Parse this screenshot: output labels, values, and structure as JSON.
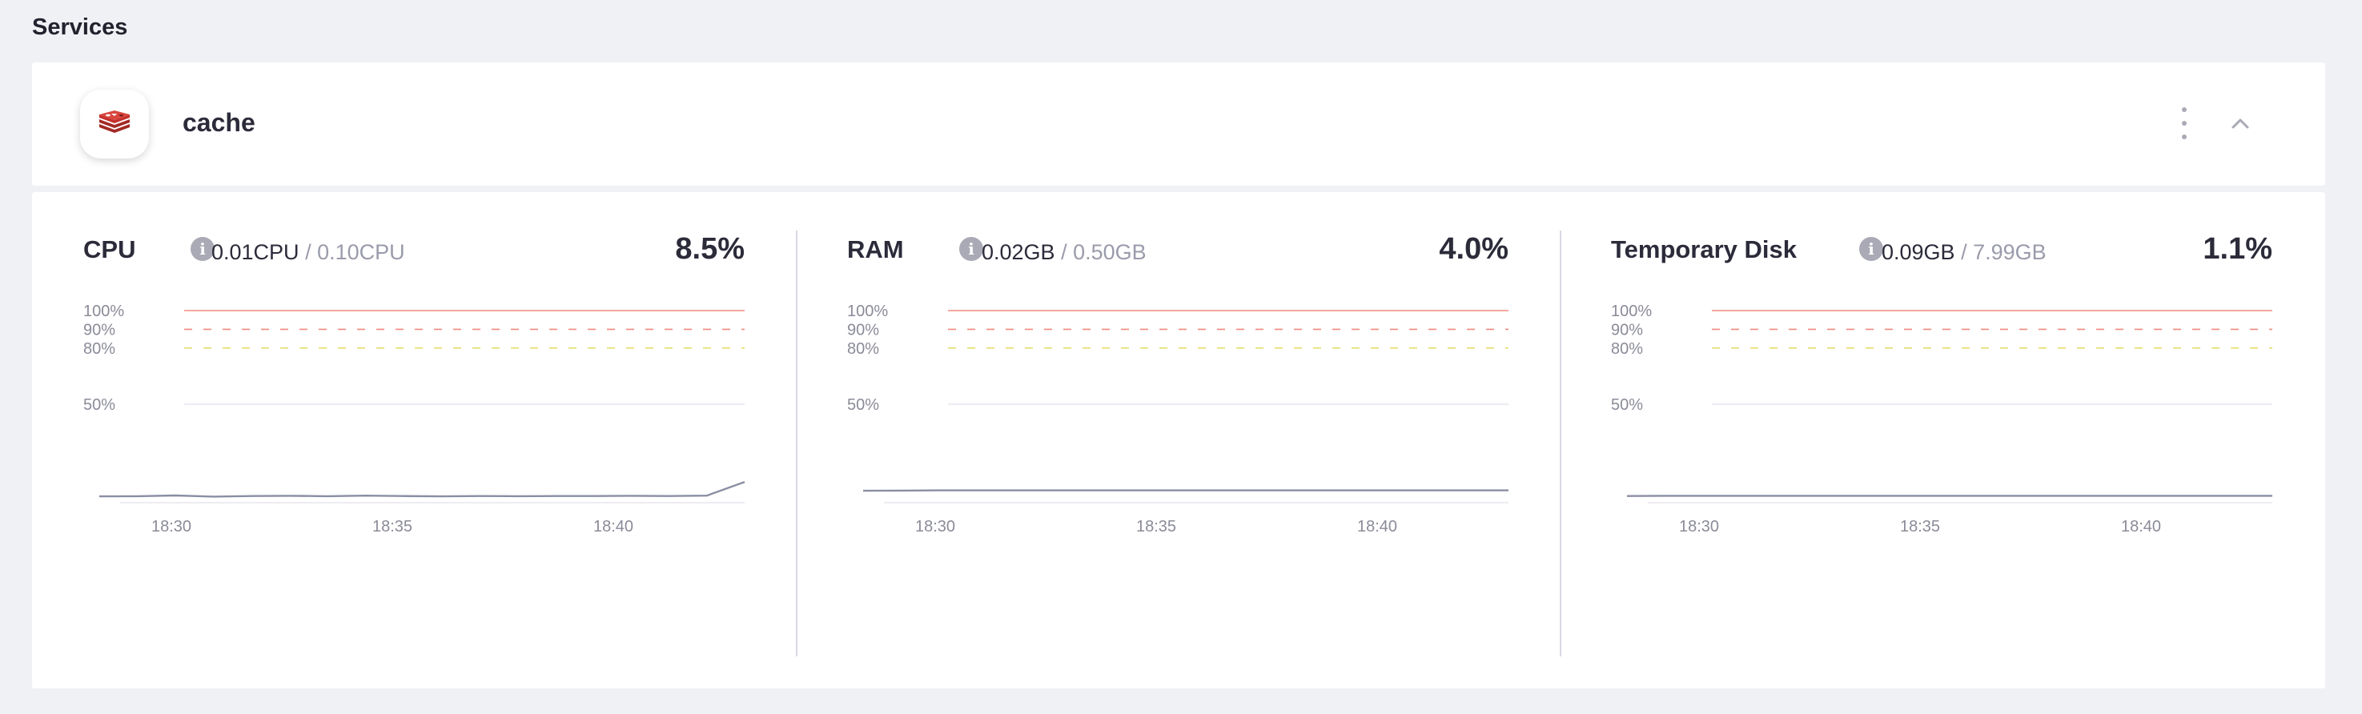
{
  "page": {
    "title": "Services"
  },
  "service": {
    "name": "cache",
    "icon": "redis-icon",
    "icon_color": "#c6302b"
  },
  "colors": {
    "limit_line": "#f08a80",
    "danger_line": "#f08a80",
    "warning_line": "#e6de6a",
    "grid_line": "#e6e6ee",
    "series_line": "#8a8ea3"
  },
  "panels": [
    {
      "title": "CPU",
      "used": "0.01CPU",
      "limit": "/ 0.10CPU",
      "percent": "8.5%",
      "chart_data": {
        "type": "line",
        "ylabels": [
          "100%",
          "90%",
          "80%",
          "50%"
        ],
        "x_ticks": [
          "18:30",
          "18:35",
          "18:40"
        ],
        "series": [
          {
            "values": [
              0.8,
              0.9,
              1.3,
              0.7,
              1.0,
              1.1,
              0.9,
              1.2,
              1.0,
              0.8,
              1.0,
              0.9,
              1.0,
              1.0,
              1.1,
              1.0,
              1.2,
              8.5
            ]
          }
        ]
      }
    },
    {
      "title": "RAM",
      "used": "0.02GB",
      "limit": "/ 0.50GB",
      "percent": "4.0%",
      "chart_data": {
        "type": "line",
        "ylabels": [
          "100%",
          "90%",
          "80%",
          "50%"
        ],
        "x_ticks": [
          "18:30",
          "18:35",
          "18:40"
        ],
        "series": [
          {
            "values": [
              3.8,
              3.9,
              4.0,
              4.0,
              4.0,
              4.0,
              4.0,
              4.0,
              4.0,
              4.0,
              4.0,
              4.0,
              4.0,
              4.0,
              4.0,
              4.0,
              4.0,
              4.0
            ]
          }
        ]
      }
    },
    {
      "title": "Temporary Disk",
      "used": "0.09GB",
      "limit": "/ 7.99GB",
      "percent": "1.1%",
      "chart_data": {
        "type": "line",
        "ylabels": [
          "100%",
          "90%",
          "80%",
          "50%"
        ],
        "x_ticks": [
          "18:30",
          "18:35",
          "18:40"
        ],
        "series": [
          {
            "values": [
              1.0,
              1.1,
              1.1,
              1.1,
              1.1,
              1.1,
              1.1,
              1.1,
              1.1,
              1.1,
              1.1,
              1.1,
              1.1,
              1.1,
              1.1,
              1.1,
              1.1,
              1.1
            ]
          }
        ]
      }
    }
  ]
}
